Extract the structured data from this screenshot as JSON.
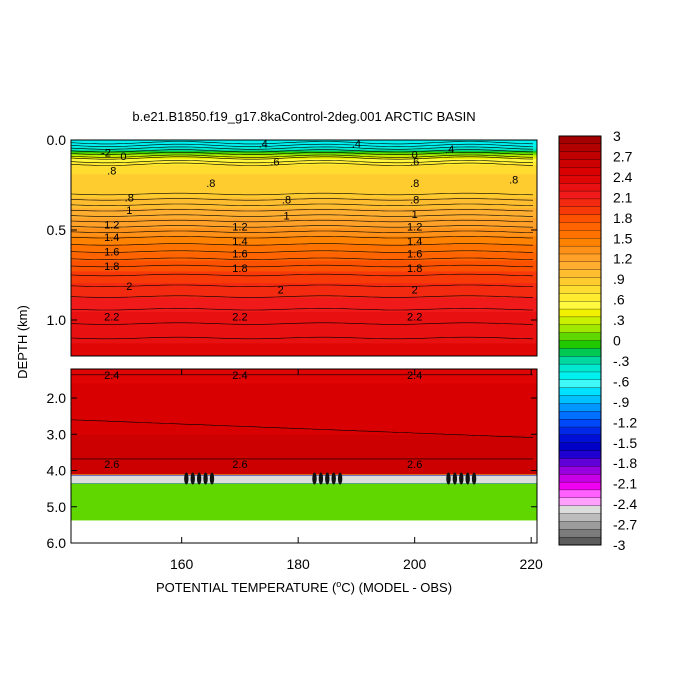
{
  "chart_data": {
    "type": "heatmap",
    "title": "b.e21.B1850.f19_g17.8kaControl-2deg.001 ARCTIC BASIN",
    "xlabel_prefix": "POTENTIAL TEMPERATURE (",
    "xlabel_deg": "o",
    "xlabel_suffix": "C) (MODEL - OBS)",
    "ylabel": "DEPTH (km)",
    "x_range": [
      141,
      221
    ],
    "x_ticks": [
      {
        "v": 160,
        "label": "160"
      },
      {
        "v": 180,
        "label": "180"
      },
      {
        "v": 200,
        "label": "200"
      },
      {
        "v": 220,
        "label": "220"
      }
    ],
    "upper_panel": {
      "y_range": [
        0,
        1.2
      ],
      "y_ticks": [
        {
          "v": 0.0,
          "label": "0.0"
        },
        {
          "v": 0.5,
          "label": "0.5"
        },
        {
          "v": 1.0,
          "label": "1.0"
        }
      ]
    },
    "lower_panel": {
      "y_range": [
        1.2,
        6.0
      ],
      "y_ticks": [
        {
          "v": 2.0,
          "label": "2.0"
        },
        {
          "v": 3.0,
          "label": "3.0"
        },
        {
          "v": 4.0,
          "label": "4.0"
        },
        {
          "v": 5.0,
          "label": "5.0"
        },
        {
          "v": 6.0,
          "label": "6.0"
        }
      ]
    },
    "temperature_profile": [
      {
        "depth": 0.0,
        "value": -0.5
      },
      {
        "depth": 0.02,
        "value": -0.55
      },
      {
        "depth": 0.05,
        "value": -0.4
      },
      {
        "depth": 0.07,
        "value": 0.0
      },
      {
        "depth": 0.09,
        "value": 0.3
      },
      {
        "depth": 0.11,
        "value": 0.5
      },
      {
        "depth": 0.15,
        "value": 0.75
      },
      {
        "depth": 0.22,
        "value": 0.85
      },
      {
        "depth": 0.28,
        "value": 0.85
      },
      {
        "depth": 0.36,
        "value": 1.0
      },
      {
        "depth": 0.46,
        "value": 1.2
      },
      {
        "depth": 0.54,
        "value": 1.4
      },
      {
        "depth": 0.62,
        "value": 1.6
      },
      {
        "depth": 0.7,
        "value": 1.8
      },
      {
        "depth": 0.82,
        "value": 2.0
      },
      {
        "depth": 0.96,
        "value": 2.2
      },
      {
        "depth": 1.2,
        "value": 2.35
      },
      {
        "depth": 1.3,
        "value": 2.4
      },
      {
        "depth": 2.6,
        "value": 2.5
      },
      {
        "depth": 3.7,
        "value": 2.6
      },
      {
        "depth": 4.1,
        "value": 2.65
      },
      {
        "depth": 4.15,
        "value": -2.5
      },
      {
        "depth": 4.35,
        "value": -2.5
      },
      {
        "depth": 4.36,
        "value": 0.1
      },
      {
        "depth": 5.35,
        "value": 0.1
      }
    ],
    "bottom_depth": 5.35,
    "contour_labels": [
      {
        "x": 147,
        "depth": 0.07,
        "text": "-2"
      },
      {
        "x": 150,
        "depth": 0.09,
        "text": "0"
      },
      {
        "x": 148,
        "depth": 0.17,
        "text": ".8"
      },
      {
        "x": 174,
        "depth": 0.02,
        "text": ".4"
      },
      {
        "x": 176,
        "depth": 0.12,
        "text": ".6"
      },
      {
        "x": 190,
        "depth": 0.02,
        "text": ".4"
      },
      {
        "x": 200,
        "depth": 0.08,
        "text": "0"
      },
      {
        "x": 200,
        "depth": 0.12,
        "text": ".6"
      },
      {
        "x": 206,
        "depth": 0.05,
        "text": ".4"
      },
      {
        "x": 165,
        "depth": 0.24,
        "text": ".8"
      },
      {
        "x": 217,
        "depth": 0.22,
        "text": ".8"
      },
      {
        "x": 200,
        "depth": 0.24,
        "text": ".8"
      },
      {
        "x": 151,
        "depth": 0.32,
        "text": ".8"
      },
      {
        "x": 178,
        "depth": 0.33,
        "text": ".8"
      },
      {
        "x": 200,
        "depth": 0.33,
        "text": ".8"
      },
      {
        "x": 151,
        "depth": 0.39,
        "text": "1"
      },
      {
        "x": 178,
        "depth": 0.42,
        "text": "1"
      },
      {
        "x": 200,
        "depth": 0.41,
        "text": "1"
      },
      {
        "x": 148,
        "depth": 0.47,
        "text": "1.2"
      },
      {
        "x": 170,
        "depth": 0.48,
        "text": "1.2"
      },
      {
        "x": 200,
        "depth": 0.48,
        "text": "1.2"
      },
      {
        "x": 148,
        "depth": 0.54,
        "text": "1.4"
      },
      {
        "x": 170,
        "depth": 0.56,
        "text": "1.4"
      },
      {
        "x": 200,
        "depth": 0.56,
        "text": "1.4"
      },
      {
        "x": 148,
        "depth": 0.62,
        "text": "1.6"
      },
      {
        "x": 170,
        "depth": 0.63,
        "text": "1.6"
      },
      {
        "x": 200,
        "depth": 0.63,
        "text": "1.6"
      },
      {
        "x": 148,
        "depth": 0.7,
        "text": "1.8"
      },
      {
        "x": 170,
        "depth": 0.71,
        "text": "1.8"
      },
      {
        "x": 200,
        "depth": 0.71,
        "text": "1.8"
      },
      {
        "x": 151,
        "depth": 0.81,
        "text": "2"
      },
      {
        "x": 177,
        "depth": 0.83,
        "text": "2"
      },
      {
        "x": 200,
        "depth": 0.83,
        "text": "2"
      },
      {
        "x": 148,
        "depth": 0.98,
        "text": "2.2"
      },
      {
        "x": 170,
        "depth": 0.98,
        "text": "2.2"
      },
      {
        "x": 200,
        "depth": 0.98,
        "text": "2.2"
      },
      {
        "x": 148,
        "depth": 1.37,
        "text": "2.4"
      },
      {
        "x": 170,
        "depth": 1.37,
        "text": "2.4"
      },
      {
        "x": 200,
        "depth": 1.37,
        "text": "2.4"
      },
      {
        "x": 148,
        "depth": 3.82,
        "text": "2.6"
      },
      {
        "x": 170,
        "depth": 3.82,
        "text": "2.6"
      },
      {
        "x": 200,
        "depth": 3.82,
        "text": "2.6"
      }
    ],
    "colorbar": {
      "labels": [
        "3",
        "2.7",
        "2.4",
        "2.1",
        "1.8",
        "1.5",
        "1.2",
        ".9",
        ".6",
        ".3",
        "0",
        "-.3",
        "-.6",
        "-.9",
        "-1.2",
        "-1.5",
        "-1.8",
        "-2.1",
        "-2.4",
        "-2.7",
        "-3"
      ],
      "colors": [
        "#a40000",
        "#b20000",
        "#c00000",
        "#cc0000",
        "#d80000",
        "#e00606",
        "#e81010",
        "#f01a1a",
        "#f42a10",
        "#f83a08",
        "#fc5200",
        "#ff6400",
        "#ff7200",
        "#ff8200",
        "#ff9018",
        "#ffa028",
        "#ffae30",
        "#ffbe30",
        "#ffcc30",
        "#ffdc30",
        "#ffec30",
        "#fffa40",
        "#f0f000",
        "#c8f000",
        "#a0e800",
        "#60d800",
        "#20c800",
        "#00c850",
        "#00d8a0",
        "#00e8d0",
        "#00f0f0",
        "#40f8f8",
        "#00e0ff",
        "#00c0ff",
        "#0098ff",
        "#0070ff",
        "#0048f8",
        "#0028e8",
        "#0010d8",
        "#0000c8",
        "#2000d0",
        "#6000d8",
        "#9800e0",
        "#c800e8",
        "#f000f0",
        "#ff60ff",
        "#ffa0ff",
        "#dcdcdc",
        "#bcbcbc",
        "#9c9c9c",
        "#7c7c7c",
        "#5c5c5c"
      ]
    }
  }
}
